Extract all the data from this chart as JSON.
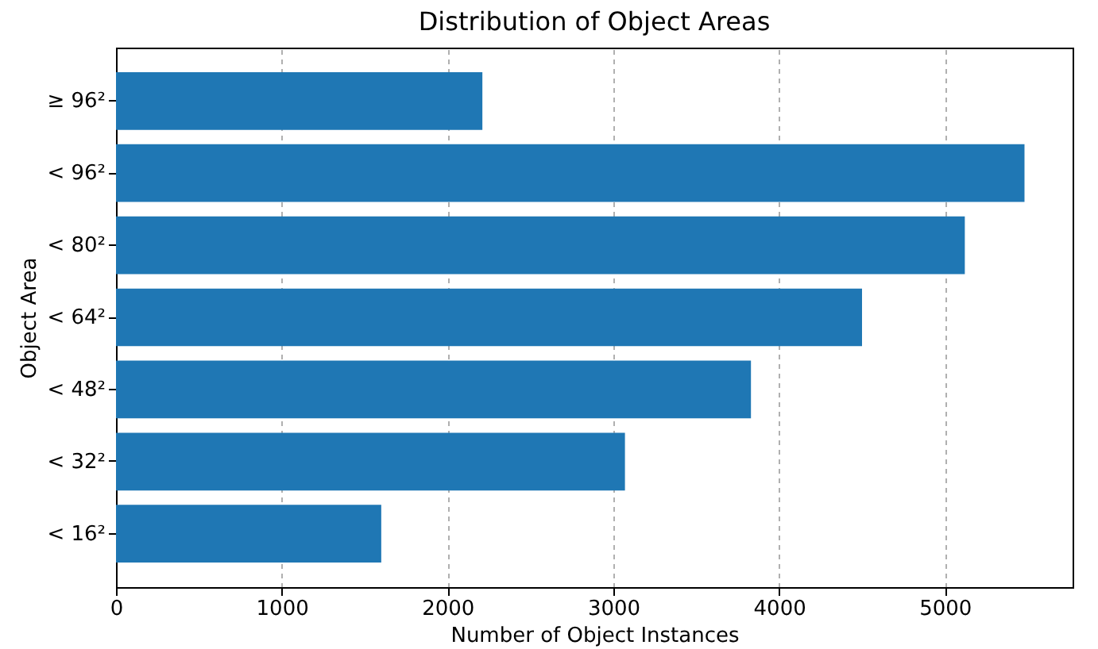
{
  "chart_data": {
    "type": "bar",
    "orientation": "horizontal",
    "title": "Distribution of Object Areas",
    "xlabel": "Number of Object Instances",
    "ylabel": "Object Area",
    "categories": [
      "≥ 96²",
      "< 96²",
      "< 80²",
      "< 64²",
      "< 48²",
      "< 32²",
      "< 16²"
    ],
    "values": [
      2210,
      5480,
      5120,
      4500,
      3830,
      3070,
      1600
    ],
    "color": "#1f77b4",
    "xlim": [
      0,
      5770
    ],
    "xticks": [
      0,
      1000,
      2000,
      3000,
      4000,
      5000
    ],
    "grid": "x"
  }
}
